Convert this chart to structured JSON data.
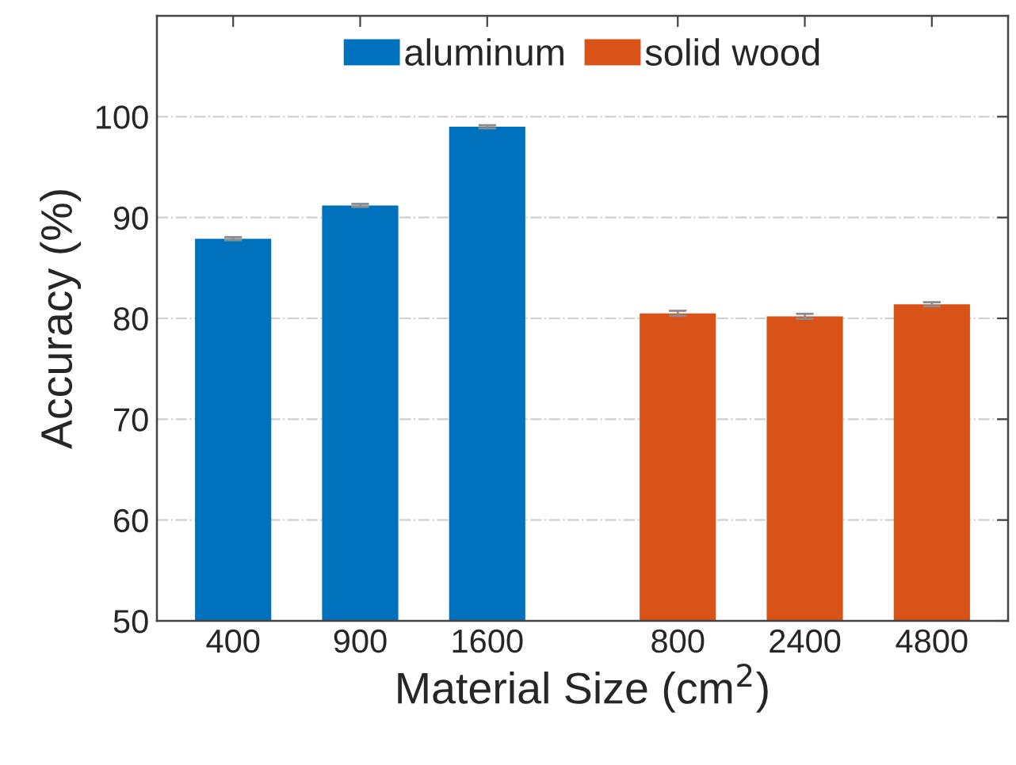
{
  "chart_data": {
    "type": "bar",
    "xlabel": "Material Size (cm$^{2}$)",
    "ylabel": "Accuracy (%)",
    "categories": [
      "400",
      "900",
      "1600",
      "800",
      "2400",
      "4800"
    ],
    "series": [
      {
        "name": "aluminum",
        "color": "#0072bd",
        "values": [
          87.9,
          91.2,
          99.0,
          null,
          null,
          null
        ],
        "errors": [
          0.15,
          0.15,
          0.15,
          null,
          null,
          null
        ]
      },
      {
        "name": "solid wood",
        "color": "#d95319",
        "values": [
          null,
          null,
          null,
          80.5,
          80.2,
          81.4
        ],
        "errors": [
          null,
          null,
          null,
          0.25,
          0.25,
          0.2
        ]
      }
    ],
    "ylim": [
      50,
      110
    ],
    "yticks": [
      50,
      60,
      70,
      80,
      90,
      100
    ],
    "grid": "y",
    "legend": "top"
  }
}
